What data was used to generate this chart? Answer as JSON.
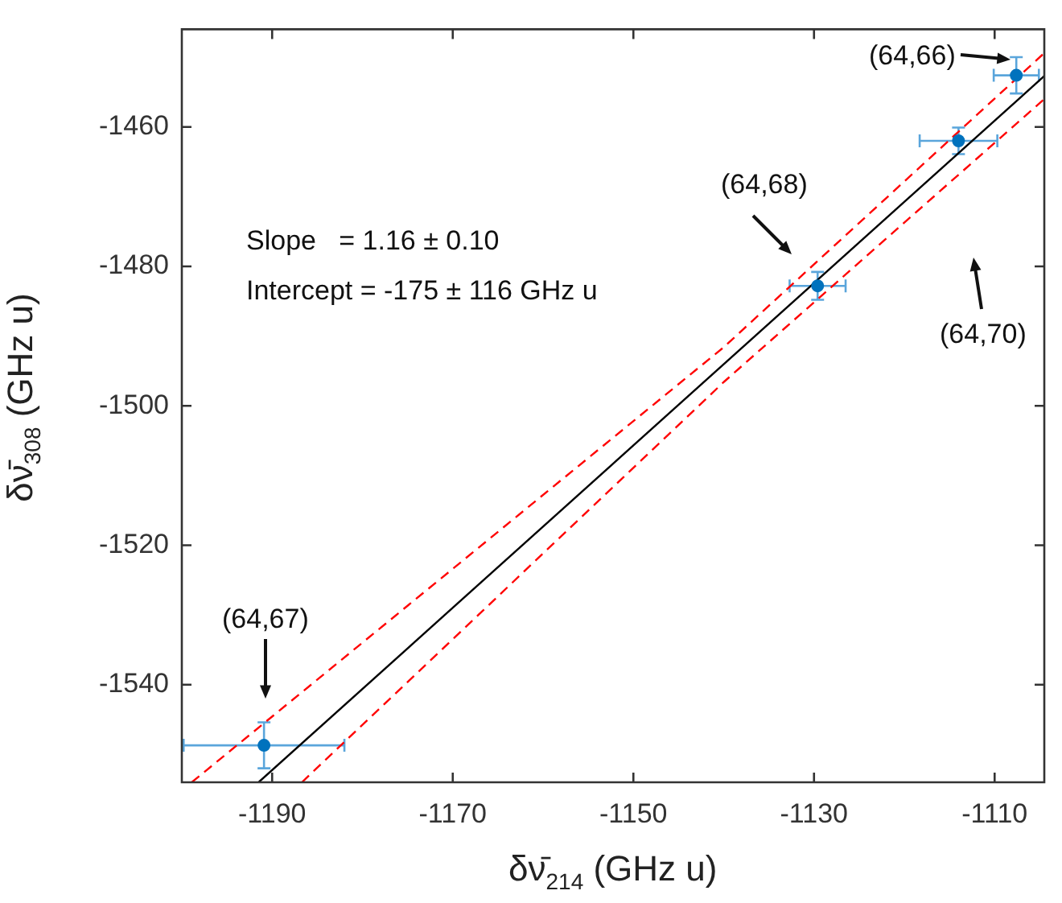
{
  "chart_data": {
    "type": "scatter",
    "xlabel": "δν̄$_{214}$ (GHz u)",
    "ylabel": "δν̄$_{308}$ (GHz u)",
    "xlim": [
      -1200,
      -1104.5
    ],
    "ylim": [
      -1554,
      -1446
    ],
    "xticks": [
      -1190,
      -1170,
      -1150,
      -1130,
      -1110
    ],
    "yticks": [
      -1540,
      -1520,
      -1500,
      -1480,
      -1460
    ],
    "grid": false,
    "legend": false,
    "series": [
      {
        "marker": "circle",
        "color": "#0072bd",
        "x": [
          -1190.9,
          -1129.6,
          -1114,
          -1107.6
        ],
        "values": [
          -1548.7,
          -1482.8,
          -1462,
          -1452.6
        ],
        "errors": [
          3.3,
          2,
          1.9,
          2.6
        ],
        "xerrors": [
          8.9,
          3.1,
          4.3,
          2.5
        ]
      },
      {
        "type": "line",
        "color": "#000000",
        "line_style": "solid",
        "x": [
          -1191.5,
          -1104.5
        ],
        "values": [
          -1554,
          -1452.7
        ]
      },
      {
        "type": "line",
        "color": "#ff0000",
        "line_style": "dashed",
        "x": [
          -1198.9,
          -1140,
          -1104.5
        ],
        "values": [
          -1554,
          -1491.6,
          -1449.4
        ]
      },
      {
        "type": "line",
        "color": "#ff0000",
        "line_style": "dashed",
        "x": [
          -1186.7,
          -1140,
          -1104.5
        ],
        "values": [
          -1554,
          -1496.6,
          -1456
        ]
      }
    ],
    "annotations": [
      "(64,67)",
      "(64,68)",
      "(64,70)",
      "(64,66)",
      "Slope   = 1.16 ± 0.10",
      "Intercept = -175 ± 116 GHz u"
    ]
  }
}
